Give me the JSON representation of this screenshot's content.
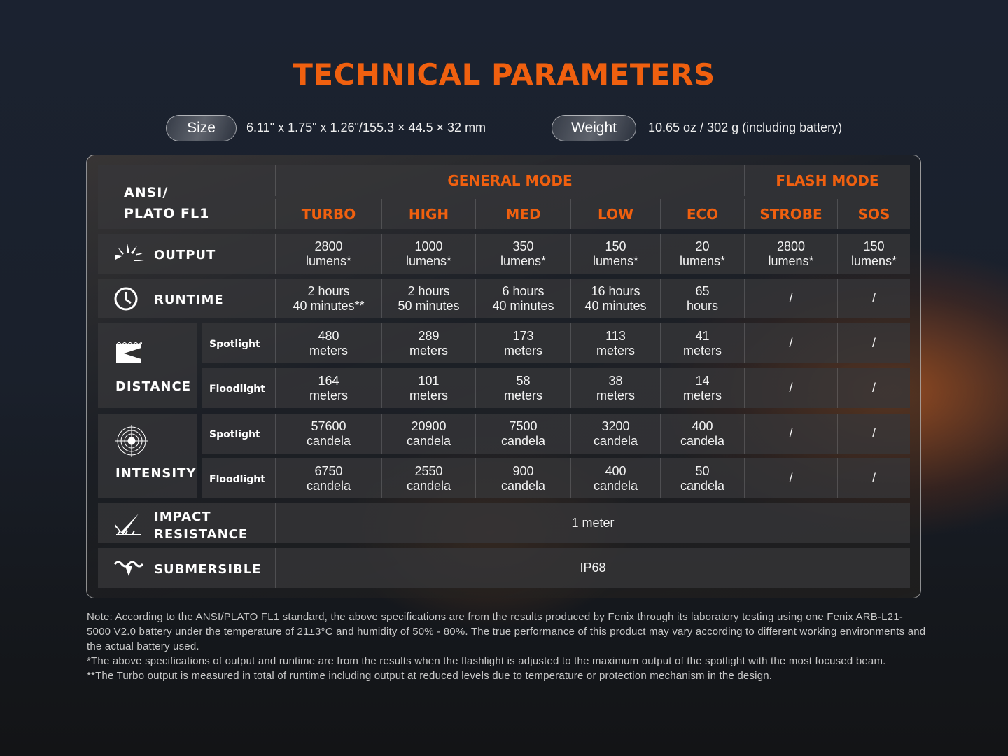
{
  "title": "TECHNICAL PARAMETERS",
  "size": {
    "label": "Size",
    "value": "6.11\" x 1.75\" x 1.26\"/155.3 × 44.5 × 32 mm"
  },
  "weight": {
    "label": "Weight",
    "value": "10.65 oz / 302 g (including battery)"
  },
  "table": {
    "standard": "ANSI/\nPLATO FL1",
    "general_mode": "GENERAL MODE",
    "flash_mode": "FLASH MODE",
    "modes": [
      "TURBO",
      "HIGH",
      "MED",
      "LOW",
      "ECO",
      "STROBE",
      "SOS"
    ],
    "rows": [
      {
        "label": "OUTPUT",
        "icon": "light-burst-icon",
        "values": [
          "2800\nlumens*",
          "1000\nlumens*",
          "350\nlumens*",
          "150\nlumens*",
          "20\nlumens*",
          "2800\nlumens*",
          "150\nlumens*"
        ]
      },
      {
        "label": "RUNTIME",
        "icon": "clock-icon",
        "values": [
          "2 hours\n40 minutes**",
          "2 hours\n50 minutes",
          "6 hours\n40 minutes",
          "16 hours\n40 minutes",
          "65\nhours",
          "/",
          "/"
        ]
      },
      {
        "group": "DISTANCE",
        "icon": "beam-distance-icon",
        "sub": "Spotlight",
        "values": [
          "480\nmeters",
          "289\nmeters",
          "173\nmeters",
          "113\nmeters",
          "41\nmeters",
          "/",
          "/"
        ]
      },
      {
        "group": "DISTANCE",
        "sub": "Floodlight",
        "values": [
          "164\nmeters",
          "101\nmeters",
          "58\nmeters",
          "38\nmeters",
          "14\nmeters",
          "/",
          "/"
        ]
      },
      {
        "group": "INTENSITY",
        "icon": "target-icon",
        "sub": "Spotlight",
        "values": [
          "57600\ncandela",
          "20900\ncandela",
          "7500\ncandela",
          "3200\ncandela",
          "400\ncandela",
          "/",
          "/"
        ]
      },
      {
        "group": "INTENSITY",
        "sub": "Floodlight",
        "values": [
          "6750\ncandela",
          "2550\ncandela",
          "900\ncandela",
          "400\ncandela",
          "50\ncandela",
          "/",
          "/"
        ]
      },
      {
        "label": "IMPACT\nRESISTANCE",
        "icon": "impact-icon",
        "span": "1 meter"
      },
      {
        "label": "SUBMERSIBLE",
        "icon": "submersible-icon",
        "span": "IP68"
      }
    ]
  },
  "notes": [
    "Note:  According to the ANSI/PLATO FL1 standard, the above specifications are from the results produced by Fenix through its laboratory testing using one Fenix ARB-L21-5000 V2.0 battery under the temperature of 21±3°C and humidity of 50% - 80%. The true performance of this product may vary according to different working environments and the actual battery used.",
    "*The above specifications of output and runtime are from the results when the flashlight is adjusted to the maximum output of the spotlight with the most focused beam.",
    "**The Turbo output is measured in total of runtime including output at reduced levels due to temperature or protection mechanism in the design."
  ],
  "colors": {
    "accent": "#f0600f"
  }
}
